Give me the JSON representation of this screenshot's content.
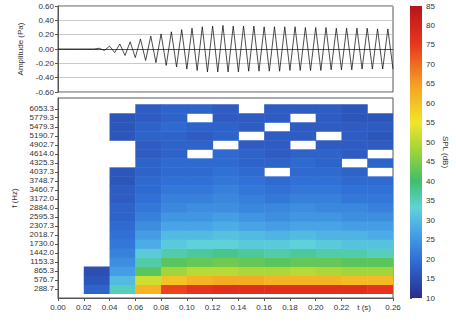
{
  "chart_data": [
    {
      "type": "line",
      "ylabel": "Amplitude (Pa)",
      "xlim": [
        0,
        0.26
      ],
      "ylim": [
        -0.6,
        0.6
      ],
      "yticks": [
        {
          "value": -0.6,
          "label": "-0.60"
        },
        {
          "value": -0.4,
          "label": "-0.40"
        },
        {
          "value": -0.2,
          "label": "-0.20"
        },
        {
          "value": 0,
          "label": "0.00"
        },
        {
          "value": 0.2,
          "label": "0.20"
        },
        {
          "value": 0.4,
          "label": "0.40"
        },
        {
          "value": 0.6,
          "label": "0.60"
        }
      ],
      "grid": true,
      "tick_labels": "y",
      "x": [
        0,
        0.004,
        0.008,
        0.012,
        0.016,
        0.02,
        0.024,
        0.028,
        0.032,
        0.036,
        0.04,
        0.044,
        0.048,
        0.052,
        0.056,
        0.06,
        0.064,
        0.068,
        0.072,
        0.076,
        0.08,
        0.084,
        0.088,
        0.092,
        0.096,
        0.1,
        0.104,
        0.108,
        0.112,
        0.116,
        0.12,
        0.124,
        0.128,
        0.132,
        0.136,
        0.14,
        0.144,
        0.148,
        0.152,
        0.156,
        0.16,
        0.164,
        0.168,
        0.172,
        0.176,
        0.18,
        0.184,
        0.188,
        0.192,
        0.196,
        0.2,
        0.204,
        0.208,
        0.212,
        0.216,
        0.22,
        0.224,
        0.228,
        0.232,
        0.236,
        0.24,
        0.244,
        0.248,
        0.252,
        0.256,
        0.26
      ],
      "series": [
        {
          "color": "#000000",
          "values": [
            0,
            0,
            0,
            0,
            0,
            0,
            0,
            0,
            0.01,
            -0.02,
            0.04,
            -0.05,
            0.07,
            -0.09,
            0.1,
            -0.12,
            0.14,
            -0.16,
            0.18,
            -0.19,
            0.21,
            -0.23,
            0.24,
            -0.25,
            0.27,
            -0.28,
            0.29,
            -0.3,
            0.31,
            -0.32,
            0.32,
            -0.32,
            0.33,
            -0.32,
            0.32,
            -0.32,
            0.32,
            -0.31,
            0.32,
            -0.31,
            0.31,
            -0.31,
            0.31,
            -0.31,
            0.31,
            -0.3,
            0.31,
            -0.3,
            0.3,
            -0.3,
            0.3,
            -0.3,
            0.3,
            -0.29,
            0.29,
            -0.29,
            0.29,
            -0.29,
            0.29,
            -0.28,
            0.29,
            -0.28,
            0.28,
            -0.28,
            0.28,
            -0.28
          ]
        }
      ]
    },
    {
      "type": "heatmap",
      "xlabel": "t (s)",
      "ylabel": "f (Hz)",
      "colorbar_label": "SPL (dB)",
      "xlim": [
        0,
        0.26
      ],
      "xticks": [
        {
          "value": 0,
          "label": "0.00"
        },
        {
          "value": 0.02,
          "label": "0.02"
        },
        {
          "value": 0.04,
          "label": "0.04"
        },
        {
          "value": 0.06,
          "label": "0.06"
        },
        {
          "value": 0.08,
          "label": "0.08"
        },
        {
          "value": 0.1,
          "label": "0.10"
        },
        {
          "value": 0.12,
          "label": "0.12"
        },
        {
          "value": 0.14,
          "label": "0.14"
        },
        {
          "value": 0.16,
          "label": "0.16"
        },
        {
          "value": 0.18,
          "label": "0.18"
        },
        {
          "value": 0.2,
          "label": "0.20"
        },
        {
          "value": 0.22,
          "label": "0.22"
        },
        {
          "value": 0.26,
          "label": "0.26"
        }
      ],
      "ylim": [
        0,
        6400
      ],
      "yticks": [
        288.7,
        576.7,
        865.3,
        1153.3,
        {
          "value": 1442,
          "label": "1442.0"
        },
        {
          "value": 1730,
          "label": "1730.0"
        },
        2018.7,
        2307.3,
        2595.3,
        {
          "value": 2884,
          "label": "2884.0"
        },
        {
          "value": 3172,
          "label": "3172.0"
        },
        3460.7,
        3748.7,
        4037.3,
        4325.3,
        {
          "value": 4614,
          "label": "4614.0"
        },
        4902.7,
        5190.7,
        5479.3,
        5779.3,
        6053.3
      ],
      "grid": false,
      "clim": [
        10,
        85
      ],
      "cticks": [
        10,
        15,
        20,
        25,
        30,
        35,
        40,
        45,
        50,
        55,
        60,
        65,
        70,
        75,
        80,
        85
      ],
      "x_bins": [
        0.02,
        0.04,
        0.06,
        0.08,
        0.1,
        0.12,
        0.14,
        0.16,
        0.18,
        0.2,
        0.22,
        0.24,
        0.26
      ],
      "y_bins": [
        144,
        432,
        721,
        1009,
        1298,
        1586,
        1874,
        2163,
        2451,
        2740,
        3028,
        3316,
        3605,
        3893,
        4181,
        4470,
        4758,
        5047,
        5335,
        5623,
        5911,
        6200
      ],
      "cells": [
        [
          18,
          35,
          62,
          74,
          76,
          77,
          77,
          77,
          77,
          77,
          77,
          76
        ],
        [
          16,
          30,
          52,
          60,
          62,
          63,
          63,
          62,
          62,
          62,
          61,
          61
        ],
        [
          15,
          26,
          42,
          48,
          50,
          50,
          49,
          49,
          50,
          49,
          48,
          48
        ],
        [
          null,
          24,
          36,
          42,
          43,
          44,
          43,
          42,
          43,
          43,
          42,
          42
        ],
        [
          null,
          22,
          32,
          36,
          37,
          38,
          37,
          36,
          37,
          36,
          36,
          35
        ],
        [
          null,
          21,
          28,
          32,
          33,
          33,
          32,
          32,
          33,
          32,
          31,
          31
        ],
        [
          null,
          20,
          26,
          30,
          30,
          31,
          30,
          29,
          30,
          29,
          29,
          28
        ],
        [
          null,
          19,
          24,
          27,
          27,
          28,
          27,
          26,
          27,
          27,
          26,
          26
        ],
        [
          null,
          18,
          22,
          25,
          25,
          26,
          25,
          24,
          25,
          25,
          24,
          24
        ],
        [
          null,
          18,
          21,
          23,
          24,
          24,
          23,
          23,
          24,
          23,
          23,
          22
        ],
        [
          null,
          17,
          20,
          22,
          22,
          23,
          22,
          21,
          22,
          22,
          21,
          21
        ],
        [
          null,
          17,
          19,
          21,
          21,
          22,
          21,
          20,
          21,
          21,
          20,
          20
        ],
        [
          null,
          16,
          19,
          20,
          20,
          21,
          20,
          19,
          20,
          20,
          19,
          19
        ],
        [
          null,
          16,
          18,
          19,
          19,
          20,
          19,
          null,
          19,
          19,
          18,
          null
        ],
        [
          null,
          null,
          18,
          19,
          19,
          19,
          18,
          18,
          19,
          18,
          null,
          18
        ],
        [
          null,
          null,
          17,
          18,
          null,
          19,
          18,
          17,
          18,
          18,
          17,
          null
        ],
        [
          null,
          null,
          17,
          18,
          18,
          null,
          17,
          17,
          null,
          17,
          17,
          17
        ],
        [
          null,
          16,
          18,
          18,
          17,
          18,
          null,
          17,
          17,
          null,
          17,
          16
        ],
        [
          null,
          16,
          18,
          19,
          18,
          18,
          17,
          null,
          17,
          17,
          17,
          17
        ],
        [
          null,
          16,
          17,
          18,
          null,
          17,
          17,
          17,
          null,
          17,
          16,
          16
        ],
        [
          null,
          null,
          17,
          18,
          18,
          17,
          null,
          17,
          17,
          17,
          16,
          null
        ]
      ]
    }
  ]
}
